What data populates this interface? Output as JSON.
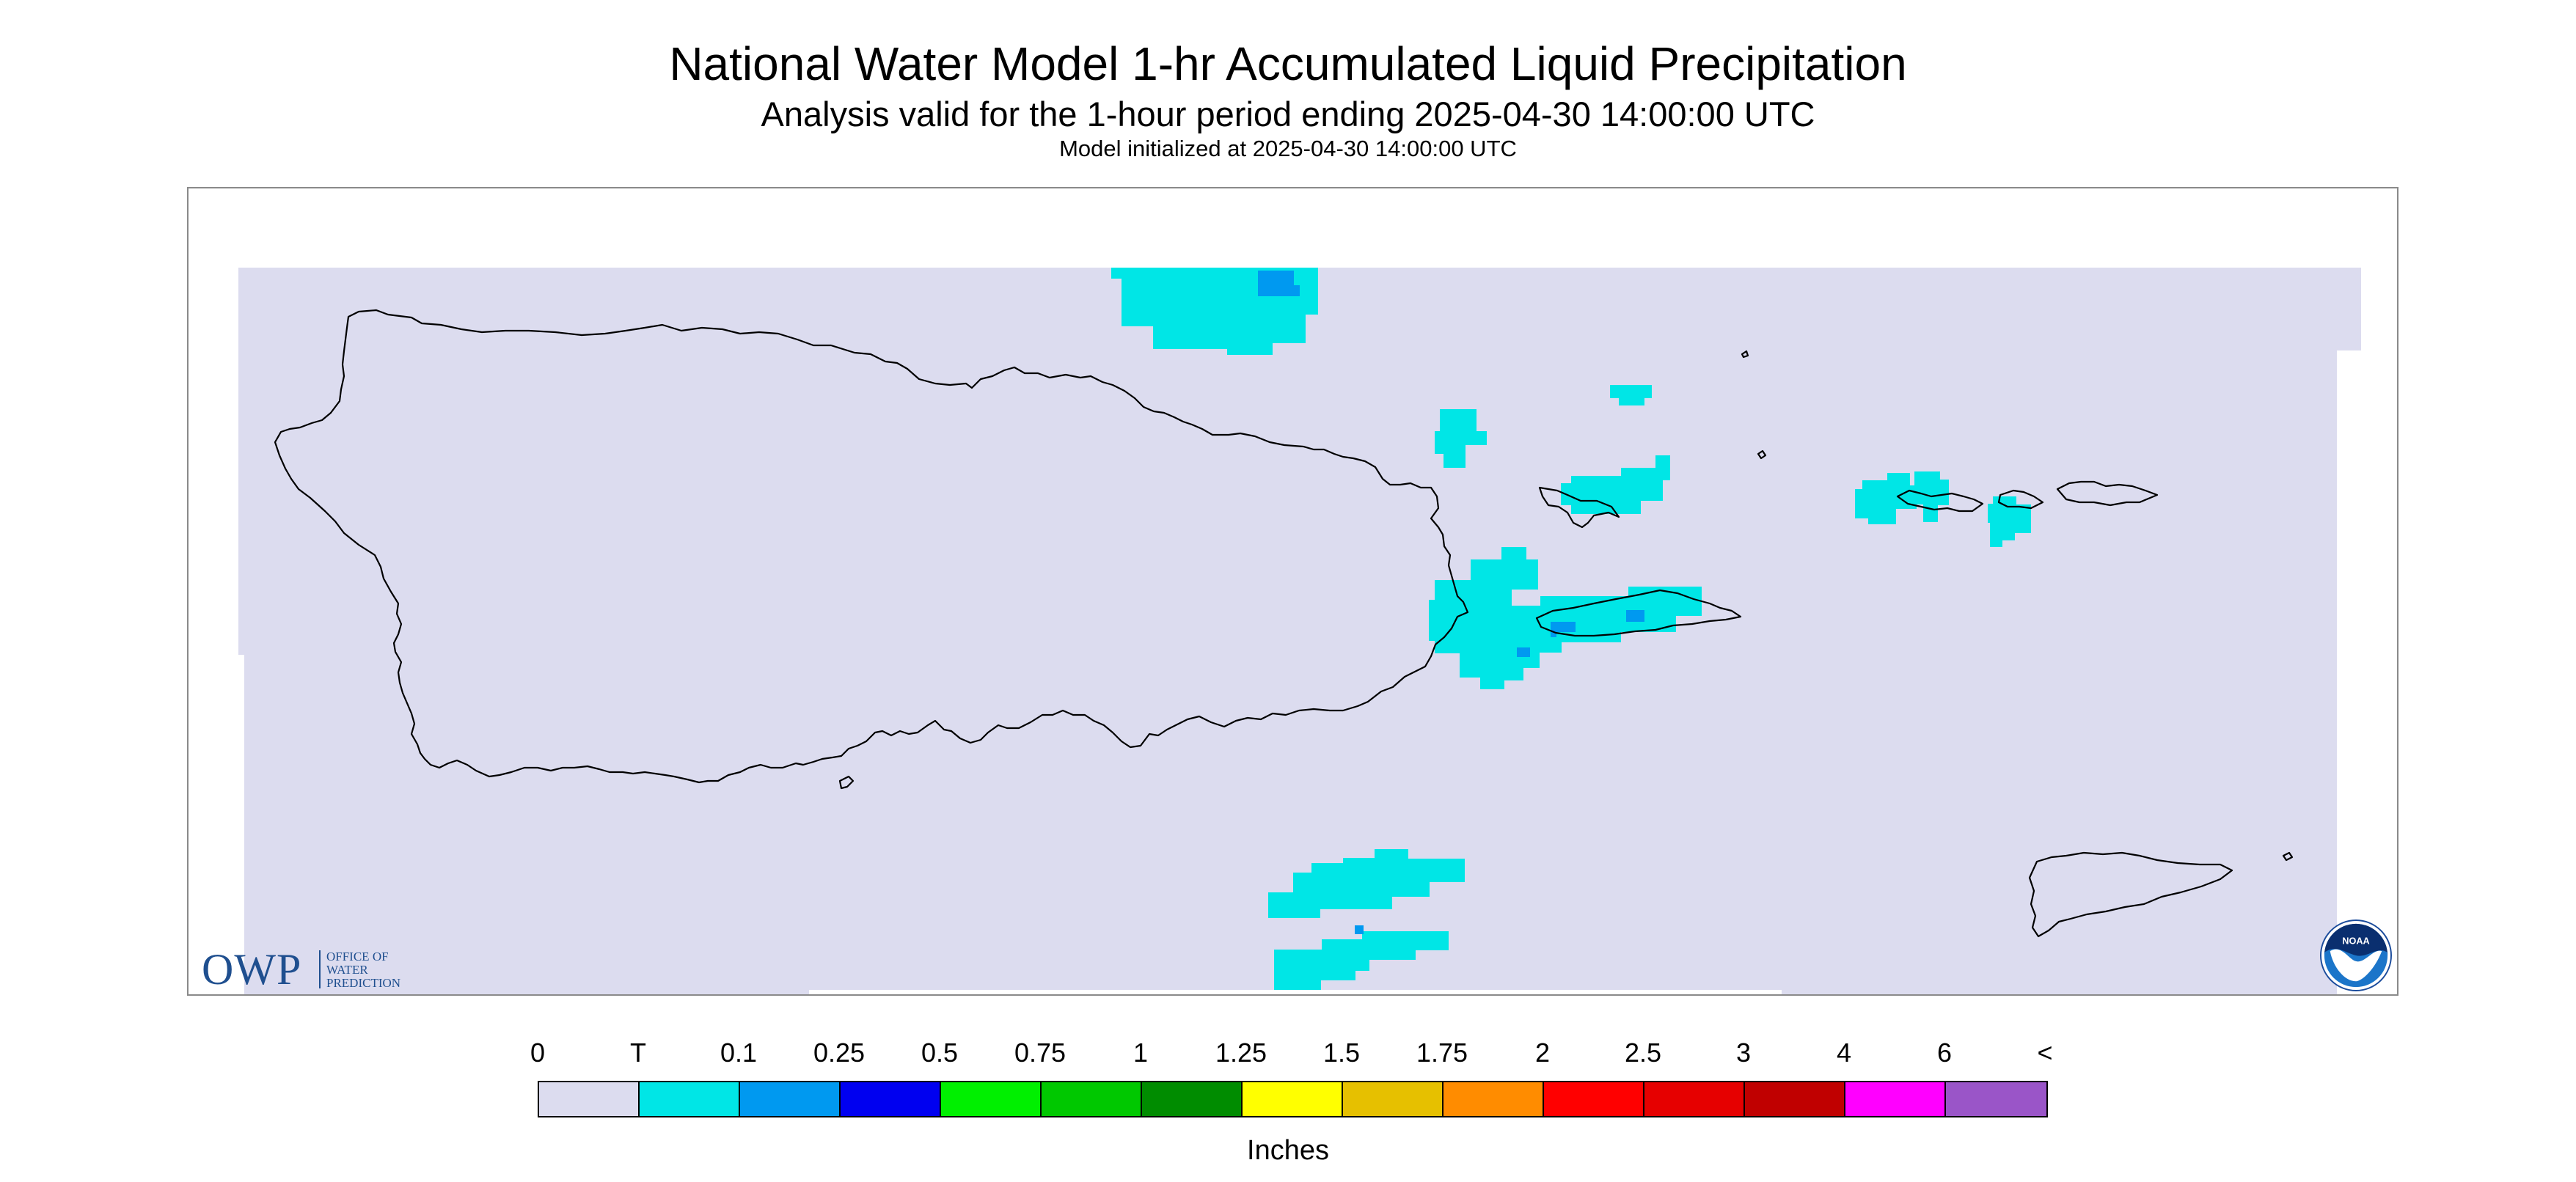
{
  "title": "National Water Model 1-hr Accumulated Liquid Precipitation",
  "subtitle": "Analysis valid for the 1-hour period ending 2025-04-30 14:00:00 UTC",
  "init_line": "Model initialized at 2025-04-30 14:00:00 UTC",
  "owp_logo": {
    "letters": "OWP",
    "lines": [
      "OFFICE OF",
      "WATER",
      "PREDICTION"
    ]
  },
  "noaa_logo": {
    "text": "NOAA"
  },
  "map": {
    "background_color": "#dcdcef",
    "coastline_color": "#000000",
    "trace_color": "#00e6e6",
    "light_blue_color": "#0099f0"
  },
  "legend": {
    "units": "Inches",
    "labels": [
      "0",
      "T",
      "0.1",
      "0.25",
      "0.5",
      "0.75",
      "1",
      "1.25",
      "1.5",
      "1.75",
      "2",
      "2.5",
      "3",
      "4",
      "6",
      "<"
    ],
    "colors": [
      "#dcdcef",
      "#00e6e6",
      "#0099f0",
      "#0000f0",
      "#00f000",
      "#00c800",
      "#008c00",
      "#ffff00",
      "#e6c000",
      "#ff8c00",
      "#ff0000",
      "#e60000",
      "#c00000",
      "#ff00ff",
      "#9a55c8"
    ]
  }
}
